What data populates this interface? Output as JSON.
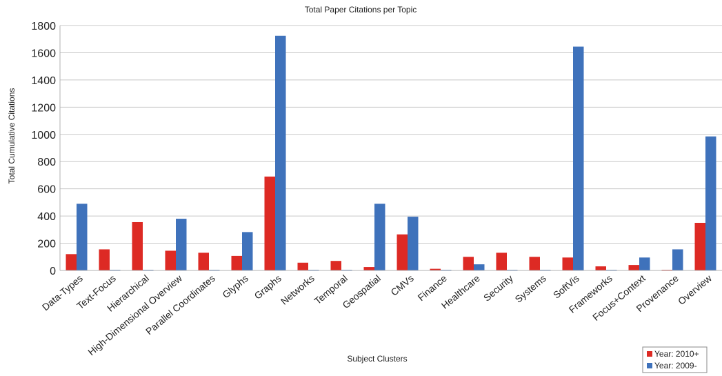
{
  "chart_data": {
    "type": "bar",
    "title": "Total Paper Citations per Topic",
    "xlabel": "Subject Clusters",
    "ylabel": "Total Cumulative Citations",
    "ylim": [
      0,
      1800
    ],
    "yticks": [
      0,
      200,
      400,
      600,
      800,
      1000,
      1200,
      1400,
      1600,
      1800
    ],
    "grid": true,
    "legend_position": "bottom-right",
    "categories": [
      "Data-Types",
      "Text-Focus",
      "Hierarchical",
      "High-Dimensional Overview",
      "Parallel Coordinates",
      "Glyphs",
      "Graphs",
      "Networks",
      "Temporal",
      "Geospatial",
      "CMVs",
      "Finance",
      "Healthcare",
      "Security",
      "Systems",
      "SoftVis",
      "Frameworks",
      "Focus+Context",
      "Provenance",
      "Overview"
    ],
    "series": [
      {
        "name": "Year: 2010+",
        "color": "#dd2a24",
        "values": [
          120,
          155,
          355,
          145,
          130,
          107,
          690,
          57,
          70,
          25,
          265,
          12,
          100,
          130,
          100,
          95,
          30,
          40,
          5,
          350
        ]
      },
      {
        "name": "Year: 2009-",
        "color": "#3f72bb",
        "values": [
          490,
          5,
          5,
          380,
          5,
          282,
          1725,
          5,
          5,
          490,
          395,
          5,
          45,
          5,
          5,
          1645,
          5,
          95,
          155,
          985
        ]
      }
    ]
  }
}
